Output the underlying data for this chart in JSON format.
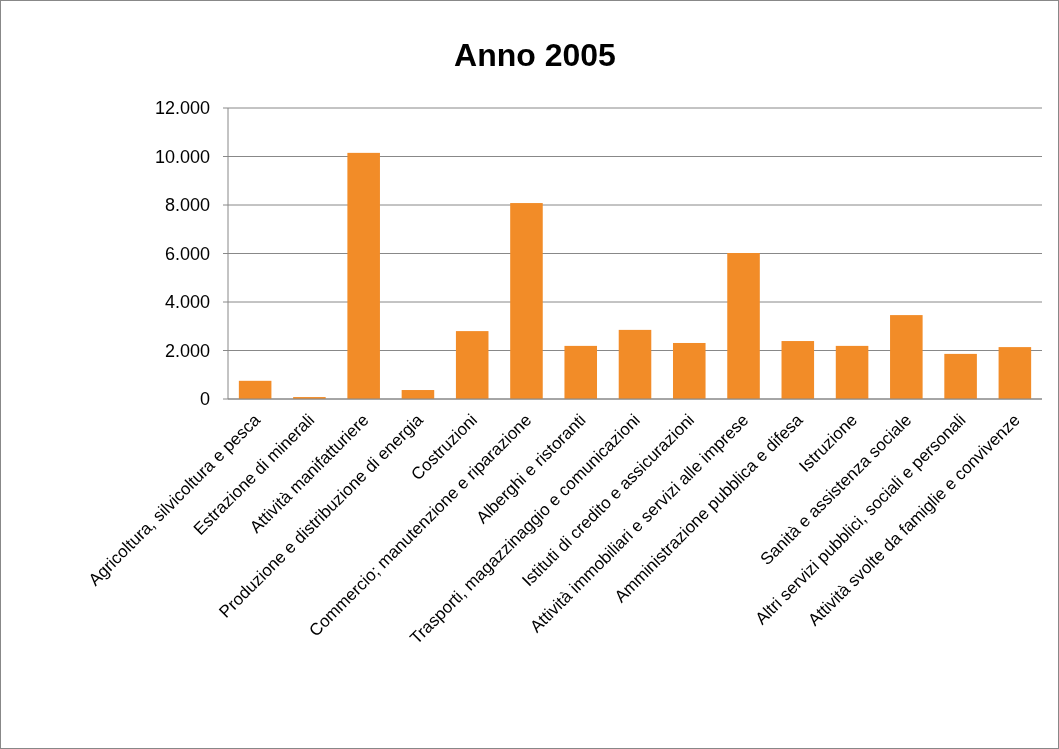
{
  "chart_data": {
    "type": "bar",
    "title": "Anno 2005",
    "categories": [
      "Agricoltura, silvicoltura e pesca",
      "Estrazione di minerali",
      "Attività manifatturiere",
      "Produzione e distribuzione di energia",
      "Costruzioni",
      "Commercio; manutenzione e riparazione",
      "Alberghi e ristoranti",
      "Trasporti, magazzinaggio e comunicazioni",
      "Istituti di credito e assicurazioni",
      "Attività immobiliari e servizi alle imprese",
      "Amministrazione pubblica e difesa",
      "Istruzione",
      "Sanità e assistenza sociale",
      "Altri servizi pubblici, sociali e personali",
      "Attività svolte da famiglie e convivenze"
    ],
    "values": [
      750,
      80,
      10150,
      370,
      2800,
      8080,
      2190,
      2850,
      2310,
      6020,
      2390,
      2190,
      3460,
      1860,
      2140
    ],
    "color": "#f28c28",
    "ylim": [
      0,
      12000
    ],
    "yticks": [
      {
        "value": 0,
        "label": "0"
      },
      {
        "value": 2000,
        "label": "2.000"
      },
      {
        "value": 4000,
        "label": "4.000"
      },
      {
        "value": 6000,
        "label": "6.000"
      },
      {
        "value": 8000,
        "label": "8.000"
      },
      {
        "value": 10000,
        "label": "10.000"
      },
      {
        "value": 12000,
        "label": "12.000"
      }
    ],
    "grid": "y"
  }
}
